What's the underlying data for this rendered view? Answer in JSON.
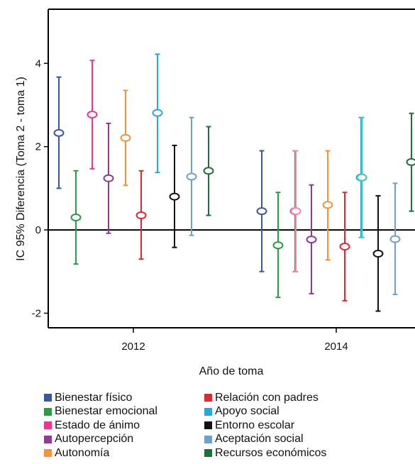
{
  "chart_data": {
    "type": "errorbar",
    "x_label": "Año de toma",
    "y_label": "IC 95% Diferencia (Toma 2 - toma 1)",
    "y_ticks": [
      -2,
      0,
      2,
      4
    ],
    "x_ticks": [
      "2012",
      "2014"
    ],
    "ylim": [
      -2.35,
      5.3
    ],
    "reference_line": 0,
    "groups": [
      "2012",
      "2014"
    ],
    "series": [
      {
        "name": "Bienestar físico",
        "color": "#3a56a5",
        "points": [
          {
            "group": "2012",
            "mean": 2.33,
            "low": 1.0,
            "high": 3.67
          },
          {
            "group": "2014",
            "mean": 0.45,
            "low": -1.0,
            "high": 1.9
          }
        ]
      },
      {
        "name": "Bienestar emocional",
        "color": "#2a9a47",
        "points": [
          {
            "group": "2012",
            "mean": 0.3,
            "low": -0.82,
            "high": 1.42
          },
          {
            "group": "2014",
            "mean": -0.37,
            "low": -1.62,
            "high": 0.9
          }
        ]
      },
      {
        "name": "Estado de ánimo",
        "color": "#e8388f",
        "points": [
          {
            "group": "2012",
            "mean": 2.77,
            "low": 1.47,
            "high": 4.07
          },
          {
            "group": "2014",
            "mean": 0.45,
            "low": -1.0,
            "high": 1.9
          }
        ]
      },
      {
        "name": "Autopercepción",
        "color": "#8d3a8f",
        "points": [
          {
            "group": "2012",
            "mean": 1.24,
            "low": -0.08,
            "high": 2.56
          },
          {
            "group": "2014",
            "mean": -0.23,
            "low": -1.53,
            "high": 1.08
          }
        ]
      },
      {
        "name": "Autonomía",
        "color": "#f7923a",
        "points": [
          {
            "group": "2012",
            "mean": 2.21,
            "low": 1.07,
            "high": 3.35
          },
          {
            "group": "2014",
            "mean": 0.6,
            "low": -0.72,
            "high": 1.9
          }
        ]
      },
      {
        "name": "Relación con padres",
        "color": "#e4262f",
        "points": [
          {
            "group": "2012",
            "mean": 0.35,
            "low": -0.7,
            "high": 1.42
          },
          {
            "group": "2014",
            "mean": -0.4,
            "low": -1.7,
            "high": 0.9
          }
        ]
      },
      {
        "name": "Apoyo social",
        "color": "#29a8d8",
        "points": [
          {
            "group": "2012",
            "mean": 2.81,
            "low": 1.38,
            "high": 4.22
          },
          {
            "group": "2014",
            "mean": 1.26,
            "low": -0.18,
            "high": 2.7
          }
        ]
      },
      {
        "name": "Entorno escolar",
        "color": "#111111",
        "points": [
          {
            "group": "2012",
            "mean": 0.8,
            "low": -0.42,
            "high": 2.03
          },
          {
            "group": "2014",
            "mean": -0.57,
            "low": -1.95,
            "high": 0.82
          }
        ]
      },
      {
        "name": "Aceptación social",
        "color": "#6fa0cc",
        "points": [
          {
            "group": "2012",
            "mean": 1.28,
            "low": -0.13,
            "high": 2.7
          },
          {
            "group": "2014",
            "mean": -0.22,
            "low": -1.55,
            "high": 1.12
          }
        ]
      },
      {
        "name": "Recursos económicos",
        "color": "#1f6e3b",
        "points": [
          {
            "group": "2012",
            "mean": 1.42,
            "low": 0.35,
            "high": 2.48
          },
          {
            "group": "2014",
            "mean": 1.63,
            "low": 0.45,
            "high": 2.8
          }
        ]
      }
    ],
    "extra_series": [
      {
        "name": "",
        "color": "#f28b9c",
        "points": [
          {
            "group": "2014",
            "mean": 0.45,
            "low": -1.0,
            "high": 1.9
          }
        ]
      },
      {
        "name": "",
        "color": "#3cc2b7",
        "points": [
          {
            "group": "2014",
            "mean": 1.26,
            "low": -0.18,
            "high": 2.7
          }
        ]
      }
    ]
  }
}
